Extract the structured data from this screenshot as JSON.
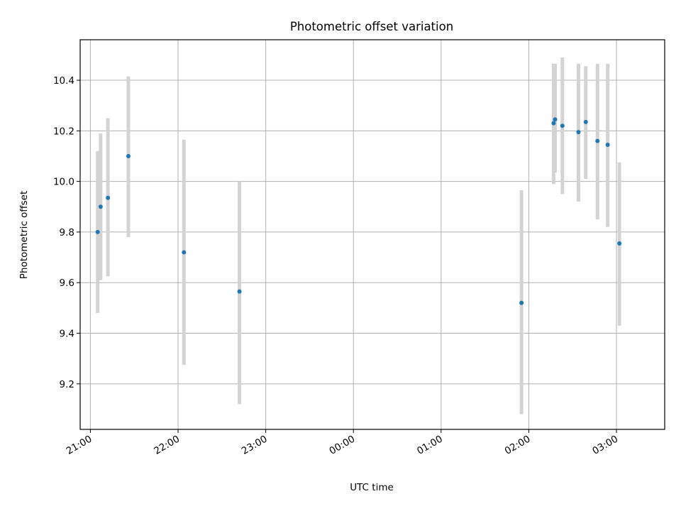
{
  "chart_data": {
    "type": "scatter",
    "title": "Photometric offset variation",
    "xlabel": "UTC time",
    "ylabel": "Photometric offset",
    "x_ticks": [
      "21:00",
      "22:00",
      "23:00",
      "00:00",
      "01:00",
      "02:00",
      "03:00"
    ],
    "y_ticks": [
      "9.2",
      "9.4",
      "9.6",
      "9.8",
      "10.0",
      "10.2",
      "10.4"
    ],
    "xlim": [
      "20:53",
      "03:33"
    ],
    "ylim": [
      9.02,
      10.56
    ],
    "grid": true,
    "series": [
      {
        "x": [
          "21:05",
          "21:07",
          "21:12",
          "21:26",
          "22:04",
          "22:42",
          "01:55",
          "02:17",
          "02:18",
          "02:23",
          "02:34",
          "02:39",
          "02:47",
          "02:54",
          "03:02"
        ],
        "y": [
          9.8,
          9.9,
          9.935,
          10.1,
          9.72,
          9.565,
          9.52,
          10.23,
          10.245,
          10.22,
          10.195,
          10.235,
          10.16,
          10.145,
          9.755
        ],
        "y_low": [
          9.48,
          9.61,
          9.625,
          9.78,
          9.275,
          9.12,
          9.08,
          9.99,
          10.035,
          9.95,
          9.92,
          10.01,
          9.85,
          9.82,
          9.43
        ],
        "y_high": [
          10.12,
          10.19,
          10.25,
          10.415,
          10.165,
          10.0,
          9.965,
          10.465,
          10.465,
          10.49,
          10.465,
          10.455,
          10.465,
          10.465,
          10.075
        ]
      }
    ],
    "colors": {
      "marker": "#1f77b4",
      "errorbar": "#d3d3d3",
      "grid": "#b0b0b0"
    }
  }
}
